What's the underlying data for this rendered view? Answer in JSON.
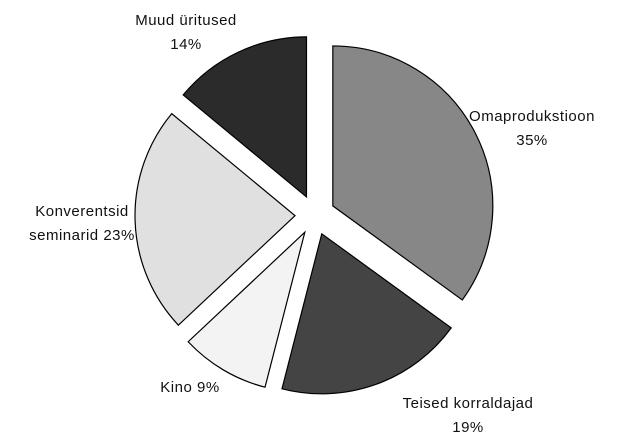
{
  "chart_data": {
    "type": "pie",
    "categories": [
      "Omaprodukstioon",
      "Teised korraldajad",
      "Kino",
      "Konverentsid seminarid",
      "Muud üritused"
    ],
    "values": [
      35,
      19,
      9,
      23,
      14
    ],
    "value_labels": [
      "35%",
      "19%",
      "9%",
      "23%",
      "14%"
    ],
    "colors": [
      "#878787",
      "#444444",
      "#f3f3f3",
      "#e0e0e0",
      "#2b2b2b"
    ]
  }
}
